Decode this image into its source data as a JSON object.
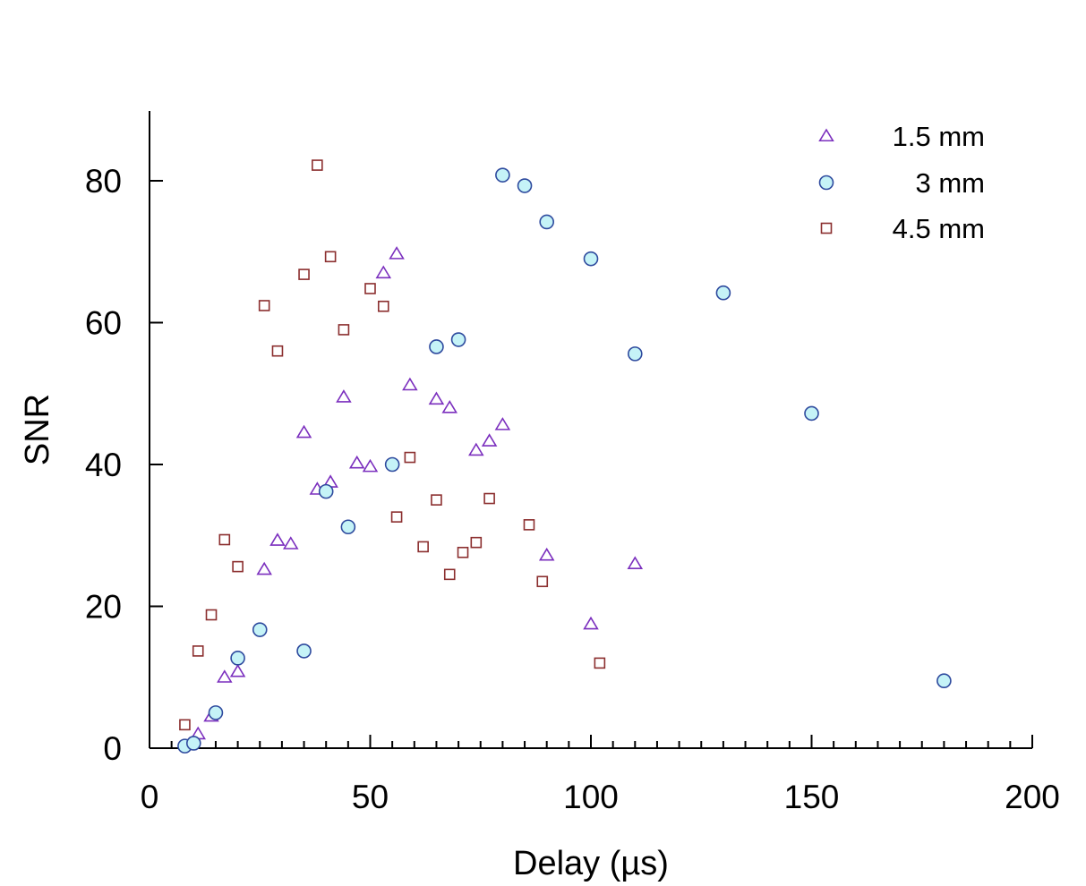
{
  "chart_data": {
    "type": "scatter",
    "xlabel": "Delay (µs)",
    "ylabel": "SNR",
    "xlim": [
      0,
      200
    ],
    "ylim": [
      0,
      90
    ],
    "x_ticks": [
      0,
      50,
      100,
      150,
      200
    ],
    "y_ticks": [
      0,
      20,
      40,
      60,
      80
    ],
    "x_tick_labels": [
      "0",
      "50",
      "100",
      "150",
      "200"
    ],
    "y_tick_labels": [
      "0",
      "20",
      "40",
      "60",
      "80"
    ],
    "x_minor_step": 5,
    "grid": false,
    "legend_position": "top-right",
    "series": [
      {
        "name": "1.5 mm",
        "marker": "triangle",
        "color": "#7b2fbe",
        "fill": "#ffffff",
        "points": [
          [
            9,
            0.5
          ],
          [
            11,
            2
          ],
          [
            14,
            4.5
          ],
          [
            17,
            10
          ],
          [
            20,
            10.8
          ],
          [
            26,
            25.2
          ],
          [
            29,
            29.3
          ],
          [
            32,
            28.8
          ],
          [
            35,
            44.5
          ],
          [
            38,
            36.5
          ],
          [
            41,
            37.5
          ],
          [
            44,
            49.5
          ],
          [
            47,
            40.2
          ],
          [
            50,
            39.7
          ],
          [
            53,
            67
          ],
          [
            56,
            69.7
          ],
          [
            59,
            51.2
          ],
          [
            65,
            49.2
          ],
          [
            68,
            48
          ],
          [
            74,
            42
          ],
          [
            77,
            43.3
          ],
          [
            80,
            45.6
          ],
          [
            90,
            27.2
          ],
          [
            100,
            17.5
          ],
          [
            110,
            26
          ]
        ]
      },
      {
        "name": "3 mm",
        "marker": "circle",
        "color": "#2e4a9e",
        "fill": "#c5f3f7",
        "points": [
          [
            8,
            0.3
          ],
          [
            10,
            0.7
          ],
          [
            15,
            5
          ],
          [
            20,
            12.7
          ],
          [
            25,
            16.7
          ],
          [
            35,
            13.7
          ],
          [
            40,
            36.2
          ],
          [
            45,
            31.2
          ],
          [
            55,
            40
          ],
          [
            65,
            56.6
          ],
          [
            70,
            57.6
          ],
          [
            80,
            80.8
          ],
          [
            85,
            79.3
          ],
          [
            90,
            74.2
          ],
          [
            100,
            69
          ],
          [
            110,
            55.6
          ],
          [
            130,
            64.2
          ],
          [
            150,
            47.2
          ],
          [
            180,
            9.5
          ]
        ]
      },
      {
        "name": "4.5 mm",
        "marker": "square",
        "color": "#8b2e2e",
        "fill": "#ffffff",
        "points": [
          [
            8,
            3.3
          ],
          [
            11,
            13.7
          ],
          [
            14,
            18.8
          ],
          [
            17,
            29.4
          ],
          [
            20,
            25.6
          ],
          [
            26,
            62.4
          ],
          [
            29,
            56
          ],
          [
            35,
            66.8
          ],
          [
            38,
            82.2
          ],
          [
            41,
            69.3
          ],
          [
            44,
            59
          ],
          [
            50,
            64.8
          ],
          [
            53,
            62.3
          ],
          [
            56,
            32.6
          ],
          [
            59,
            41
          ],
          [
            62,
            28.4
          ],
          [
            65,
            35
          ],
          [
            68,
            24.5
          ],
          [
            71,
            27.6
          ],
          [
            74,
            29
          ],
          [
            77,
            35.2
          ],
          [
            86,
            31.5
          ],
          [
            89,
            23.5
          ],
          [
            102,
            12
          ]
        ]
      }
    ]
  }
}
